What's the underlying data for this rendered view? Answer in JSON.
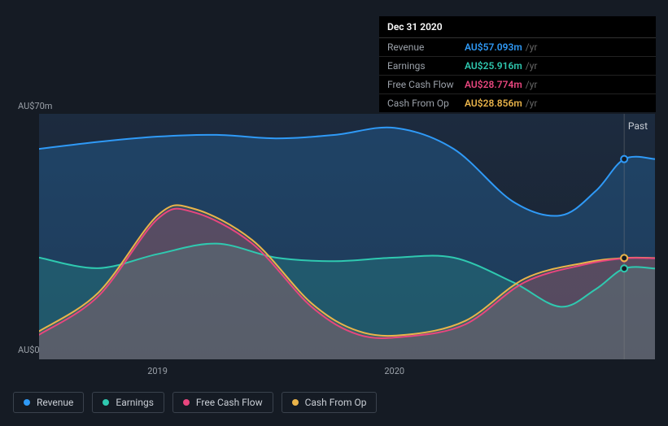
{
  "tooltip": {
    "date": "Dec 31 2020",
    "rows": [
      {
        "label": "Revenue",
        "value": "AU$57.093m",
        "unit": "/yr",
        "color": "#2f9af7"
      },
      {
        "label": "Earnings",
        "value": "AU$25.916m",
        "unit": "/yr",
        "color": "#2fc9b0"
      },
      {
        "label": "Free Cash Flow",
        "value": "AU$28.774m",
        "unit": "/yr",
        "color": "#e8467e"
      },
      {
        "label": "Cash From Op",
        "value": "AU$28.856m",
        "unit": "/yr",
        "color": "#eab44a"
      }
    ]
  },
  "chart": {
    "type": "area",
    "background_color": "#151b24",
    "panel_gradient_top": "#1c2b3f",
    "panel_gradient_bottom": "#1a212c",
    "grid_color": "rgba(255,255,255,0.05)",
    "marker_line_color": "#888",
    "past_label": "Past",
    "y_axis": {
      "min": 0,
      "max": 70,
      "unit_prefix": "AU$",
      "unit_suffix": "m",
      "ticks": [
        0,
        70
      ]
    },
    "x_axis": {
      "domain": [
        2018.5,
        2021.1
      ],
      "ticks": [
        2019,
        2020
      ],
      "tick_labels": [
        "2019",
        "2020"
      ]
    },
    "marker_x": 2020.97,
    "series": [
      {
        "name": "Revenue",
        "color": "#2f9af7",
        "fill_opacity": 0.22,
        "line_width": 2,
        "points": [
          {
            "x": 2018.5,
            "y": 60
          },
          {
            "x": 2018.75,
            "y": 62
          },
          {
            "x": 2019.0,
            "y": 63.5
          },
          {
            "x": 2019.25,
            "y": 64
          },
          {
            "x": 2019.5,
            "y": 63
          },
          {
            "x": 2019.75,
            "y": 64
          },
          {
            "x": 2020.0,
            "y": 66
          },
          {
            "x": 2020.25,
            "y": 60
          },
          {
            "x": 2020.5,
            "y": 45
          },
          {
            "x": 2020.7,
            "y": 41
          },
          {
            "x": 2020.85,
            "y": 48
          },
          {
            "x": 2020.97,
            "y": 57.1
          },
          {
            "x": 2021.1,
            "y": 57.1
          }
        ]
      },
      {
        "name": "Earnings",
        "color": "#2fc9b0",
        "fill_opacity": 0.2,
        "line_width": 2,
        "points": [
          {
            "x": 2018.5,
            "y": 29
          },
          {
            "x": 2018.75,
            "y": 26
          },
          {
            "x": 2019.0,
            "y": 30
          },
          {
            "x": 2019.25,
            "y": 33
          },
          {
            "x": 2019.5,
            "y": 29
          },
          {
            "x": 2019.75,
            "y": 28
          },
          {
            "x": 2020.0,
            "y": 29
          },
          {
            "x": 2020.25,
            "y": 29
          },
          {
            "x": 2020.5,
            "y": 22
          },
          {
            "x": 2020.7,
            "y": 15
          },
          {
            "x": 2020.85,
            "y": 20
          },
          {
            "x": 2020.97,
            "y": 25.9
          },
          {
            "x": 2021.1,
            "y": 25.9
          }
        ]
      },
      {
        "name": "Free Cash Flow",
        "color": "#e8467e",
        "fill_opacity": 0.18,
        "line_width": 2,
        "points": [
          {
            "x": 2018.5,
            "y": 7
          },
          {
            "x": 2018.75,
            "y": 18
          },
          {
            "x": 2019.0,
            "y": 40
          },
          {
            "x": 2019.15,
            "y": 42
          },
          {
            "x": 2019.4,
            "y": 33
          },
          {
            "x": 2019.65,
            "y": 15
          },
          {
            "x": 2019.85,
            "y": 7
          },
          {
            "x": 2020.05,
            "y": 6.5
          },
          {
            "x": 2020.3,
            "y": 10
          },
          {
            "x": 2020.55,
            "y": 22
          },
          {
            "x": 2020.8,
            "y": 27
          },
          {
            "x": 2020.97,
            "y": 28.8
          },
          {
            "x": 2021.1,
            "y": 28.8
          }
        ]
      },
      {
        "name": "Cash From Op",
        "color": "#eab44a",
        "fill_opacity": 0.12,
        "line_width": 2,
        "points": [
          {
            "x": 2018.5,
            "y": 8
          },
          {
            "x": 2018.75,
            "y": 19
          },
          {
            "x": 2019.0,
            "y": 41
          },
          {
            "x": 2019.15,
            "y": 43
          },
          {
            "x": 2019.4,
            "y": 34
          },
          {
            "x": 2019.65,
            "y": 16
          },
          {
            "x": 2019.85,
            "y": 8
          },
          {
            "x": 2020.05,
            "y": 7
          },
          {
            "x": 2020.3,
            "y": 11
          },
          {
            "x": 2020.55,
            "y": 23
          },
          {
            "x": 2020.8,
            "y": 27.5
          },
          {
            "x": 2020.97,
            "y": 28.9
          },
          {
            "x": 2021.1,
            "y": 28.9
          }
        ]
      }
    ]
  },
  "legend": {
    "items": [
      {
        "label": "Revenue",
        "color": "#2f9af7"
      },
      {
        "label": "Earnings",
        "color": "#2fc9b0"
      },
      {
        "label": "Free Cash Flow",
        "color": "#e8467e"
      },
      {
        "label": "Cash From Op",
        "color": "#eab44a"
      }
    ]
  }
}
